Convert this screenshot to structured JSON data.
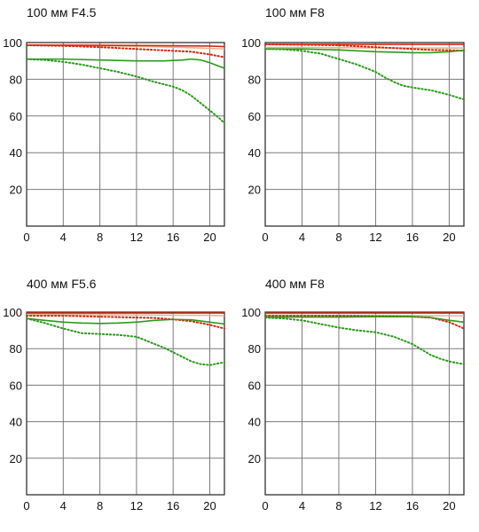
{
  "chart_data": [
    {
      "type": "line",
      "title": "100 мм F4.5",
      "xlim": [
        0,
        21.6
      ],
      "ylim": [
        0,
        100
      ],
      "xticks": [
        0,
        4,
        8,
        12,
        16,
        20
      ],
      "yticks": [
        20,
        40,
        60,
        80,
        100
      ],
      "grid": true,
      "series": [
        {
          "color": "#e8b28c",
          "style": "solid",
          "x": [
            0,
            4,
            8,
            12,
            16,
            18,
            20,
            21.6
          ],
          "y": [
            98.5,
            98.4,
            98.2,
            98,
            97.5,
            97.2,
            96.8,
            96.5
          ]
        },
        {
          "color": "#d42a10",
          "style": "solid",
          "x": [
            0,
            4,
            8,
            12,
            16,
            20,
            21.6
          ],
          "y": [
            98.6,
            98.6,
            98.5,
            98.4,
            98.3,
            98.1,
            97.8
          ]
        },
        {
          "color": "#d42a10",
          "style": "dotted",
          "x": [
            0,
            4,
            8,
            12,
            16,
            18,
            20,
            21.6
          ],
          "y": [
            98.5,
            98.2,
            97.5,
            96.5,
            95.5,
            95,
            93.5,
            92
          ]
        },
        {
          "color": "#2a9a1a",
          "style": "solid",
          "x": [
            0,
            4,
            8,
            12,
            15,
            17,
            18,
            19,
            20,
            21.6
          ],
          "y": [
            91,
            91,
            90.5,
            90,
            90,
            90.5,
            91,
            90.5,
            89,
            86
          ]
        },
        {
          "color": "#2a9a1a",
          "style": "dotted",
          "x": [
            0,
            2,
            4,
            6,
            8,
            10,
            12,
            14,
            16,
            17,
            18,
            19,
            20,
            21,
            21.6
          ],
          "y": [
            91,
            90.5,
            89.5,
            88,
            86,
            84,
            81.5,
            78.5,
            76,
            74,
            71,
            67,
            63,
            59,
            56
          ]
        }
      ]
    },
    {
      "type": "line",
      "title": "100 мм F8",
      "xlim": [
        0,
        21.6
      ],
      "ylim": [
        0,
        100
      ],
      "xticks": [
        0,
        4,
        8,
        12,
        16,
        20
      ],
      "yticks": [
        20,
        40,
        60,
        80,
        100
      ],
      "grid": true,
      "series": [
        {
          "color": "#e8b28c",
          "style": "solid",
          "x": [
            0,
            4,
            8,
            12,
            16,
            20,
            21.6
          ],
          "y": [
            97.3,
            97.3,
            97.2,
            97.1,
            97,
            97,
            97
          ]
        },
        {
          "color": "#d42a10",
          "style": "solid",
          "x": [
            0,
            4,
            8,
            12,
            16,
            20,
            21.6
          ],
          "y": [
            99,
            99,
            99,
            99,
            99,
            99,
            99
          ]
        },
        {
          "color": "#d42a10",
          "style": "dotted",
          "x": [
            0,
            4,
            8,
            12,
            14,
            16,
            18,
            20,
            21.6
          ],
          "y": [
            99,
            98.8,
            98.5,
            97.5,
            97,
            96.5,
            96,
            95.8,
            95.5
          ]
        },
        {
          "color": "#2a9a1a",
          "style": "solid",
          "x": [
            0,
            4,
            8,
            12,
            16,
            18,
            20,
            21.6
          ],
          "y": [
            96.5,
            96.5,
            96,
            95,
            94.5,
            94.5,
            95,
            95.8
          ]
        },
        {
          "color": "#2a9a1a",
          "style": "dotted",
          "x": [
            0,
            2,
            4,
            6,
            8,
            10,
            12,
            13,
            14,
            15,
            16,
            18,
            20,
            21.6
          ],
          "y": [
            96.5,
            96.3,
            95.5,
            94,
            91,
            88,
            84,
            81,
            78.5,
            76.5,
            75.5,
            74,
            71.5,
            69
          ]
        }
      ]
    },
    {
      "type": "line",
      "title": "400 мм F5.6",
      "xlim": [
        0,
        21.6
      ],
      "ylim": [
        0,
        100
      ],
      "xticks": [
        0,
        4,
        8,
        12,
        16,
        20
      ],
      "yticks": [
        20,
        40,
        60,
        80,
        100
      ],
      "grid": true,
      "series": [
        {
          "color": "#e8b28c",
          "style": "solid",
          "x": [
            0,
            4,
            8,
            12,
            16,
            20,
            21.6
          ],
          "y": [
            98.6,
            98.6,
            98.5,
            98.4,
            98.3,
            98.2,
            98
          ]
        },
        {
          "color": "#d42a10",
          "style": "solid",
          "x": [
            0,
            4,
            8,
            12,
            16,
            20,
            21.6
          ],
          "y": [
            99.5,
            99.5,
            99.5,
            99.5,
            99.5,
            99.5,
            99.5
          ]
        },
        {
          "color": "#d42a10",
          "style": "dotted",
          "x": [
            0,
            4,
            8,
            12,
            14,
            16,
            18,
            20,
            21.6
          ],
          "y": [
            98,
            98,
            97.5,
            97,
            96.8,
            96,
            95,
            93,
            91
          ]
        },
        {
          "color": "#2a9a1a",
          "style": "solid",
          "x": [
            0,
            2,
            4,
            6,
            8,
            10,
            12,
            14,
            16,
            18,
            20,
            21.6
          ],
          "y": [
            96.5,
            95.5,
            94.5,
            94,
            93.8,
            94,
            94.5,
            95.5,
            96,
            95.8,
            94.5,
            93.5
          ]
        },
        {
          "color": "#2a9a1a",
          "style": "dotted",
          "x": [
            0,
            2,
            4,
            6,
            8,
            10,
            12,
            13,
            14,
            15,
            16,
            17,
            18,
            19,
            20,
            21,
            21.6
          ],
          "y": [
            96.5,
            94,
            91,
            88.5,
            88,
            87.5,
            86.5,
            84.5,
            82.5,
            80.5,
            78,
            75.5,
            73,
            71.5,
            71,
            72,
            72.5
          ]
        }
      ]
    },
    {
      "type": "line",
      "title": "400 мм F8",
      "xlim": [
        0,
        21.6
      ],
      "ylim": [
        0,
        100
      ],
      "xticks": [
        0,
        4,
        8,
        12,
        16,
        20
      ],
      "yticks": [
        20,
        40,
        60,
        80,
        100
      ],
      "grid": true,
      "series": [
        {
          "color": "#e8b28c",
          "style": "solid",
          "x": [
            0,
            4,
            8,
            12,
            16,
            20,
            21.6
          ],
          "y": [
            98.3,
            98.3,
            98.2,
            98.2,
            98.1,
            98,
            98
          ]
        },
        {
          "color": "#d42a10",
          "style": "solid",
          "x": [
            0,
            4,
            8,
            12,
            16,
            20,
            21.6
          ],
          "y": [
            99.5,
            99.5,
            99.5,
            99.5,
            99.5,
            99.5,
            99.5
          ]
        },
        {
          "color": "#d42a10",
          "style": "dotted",
          "x": [
            0,
            4,
            8,
            12,
            16,
            18,
            20,
            21.6
          ],
          "y": [
            98,
            98,
            98,
            97.8,
            97.5,
            97,
            94.5,
            91
          ]
        },
        {
          "color": "#2a9a1a",
          "style": "solid",
          "x": [
            0,
            4,
            8,
            12,
            16,
            18,
            20,
            21.6
          ],
          "y": [
            97.3,
            97.3,
            97.3,
            97.5,
            97.5,
            97,
            95.5,
            94.5
          ]
        },
        {
          "color": "#2a9a1a",
          "style": "dotted",
          "x": [
            0,
            2,
            4,
            6,
            8,
            10,
            12,
            14,
            15,
            16,
            17,
            18,
            19,
            20,
            21,
            21.6
          ],
          "y": [
            97,
            96.5,
            95.5,
            93.5,
            91.5,
            90,
            89,
            86.5,
            84.5,
            82.5,
            79.5,
            76.5,
            74.5,
            73,
            72,
            71.5
          ]
        }
      ]
    }
  ]
}
